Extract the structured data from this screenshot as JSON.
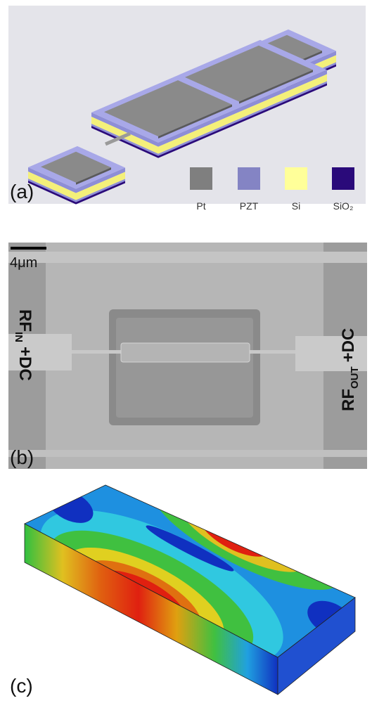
{
  "panel_a": {
    "label": "(a)",
    "legend": [
      "Pt",
      "PZT",
      "Si",
      "SiO₂"
    ]
  },
  "panel_b": {
    "label": "(b)",
    "scale_bar": "4μm",
    "left_port": {
      "text": "RF",
      "subscript": "IN",
      "suffix": "+DC"
    },
    "right_port": {
      "text": "RF",
      "subscript": "OUT",
      "suffix": "+DC"
    }
  },
  "panel_c": {
    "label": "(c)"
  }
}
